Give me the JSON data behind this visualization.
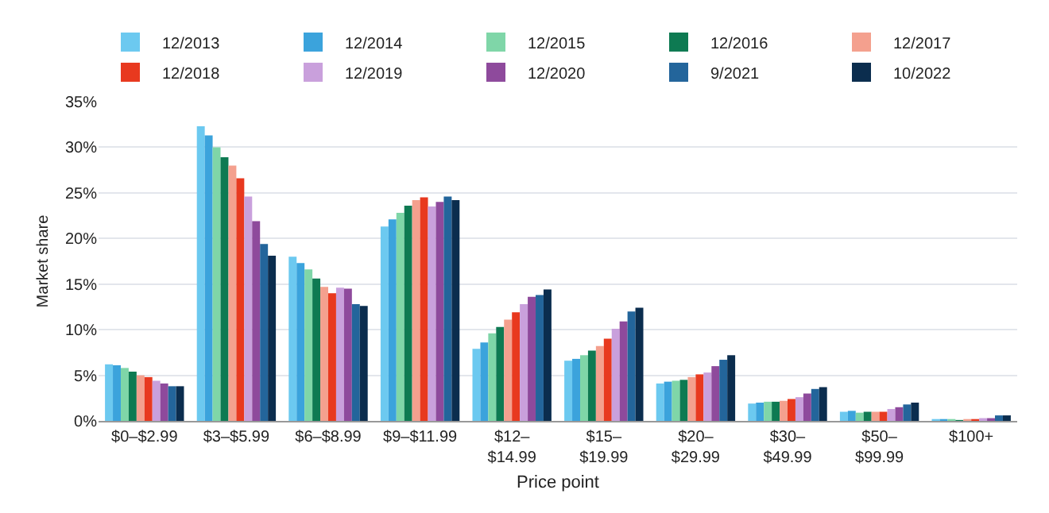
{
  "chart_data": {
    "type": "bar",
    "xlabel": "Price point",
    "ylabel": "Market share",
    "categories": [
      "$0–$2.99",
      "$3–$5.99",
      "$6–$8.99",
      "$9–$11.99",
      "$12–$14.99",
      "$15–$19.99",
      "$20–$29.99",
      "$30–$49.99",
      "$50–$99.99",
      "$100+"
    ],
    "series": [
      {
        "name": "12/2013",
        "color": "#6cc9f0",
        "values": [
          6.2,
          32.3,
          18.0,
          21.3,
          7.9,
          6.6,
          4.1,
          1.9,
          1.0,
          0.2
        ]
      },
      {
        "name": "12/2014",
        "color": "#3ba3dc",
        "values": [
          6.1,
          31.3,
          17.3,
          22.1,
          8.6,
          6.8,
          4.3,
          2.0,
          1.1,
          0.2
        ]
      },
      {
        "name": "12/2015",
        "color": "#7fd6a8",
        "values": [
          5.8,
          30.0,
          16.6,
          22.8,
          9.6,
          7.2,
          4.4,
          2.1,
          0.9,
          0.2
        ]
      },
      {
        "name": "12/2016",
        "color": "#0e7a52",
        "values": [
          5.4,
          28.9,
          15.6,
          23.6,
          10.3,
          7.7,
          4.5,
          2.1,
          1.0,
          0.1
        ]
      },
      {
        "name": "12/2017",
        "color": "#f4a08e",
        "values": [
          5.0,
          28.0,
          14.7,
          24.2,
          11.1,
          8.2,
          4.8,
          2.2,
          1.0,
          0.2
        ]
      },
      {
        "name": "12/2018",
        "color": "#e8391f",
        "values": [
          4.8,
          26.6,
          14.0,
          24.5,
          11.9,
          9.0,
          5.1,
          2.4,
          1.0,
          0.2
        ]
      },
      {
        "name": "12/2019",
        "color": "#c9a0dc",
        "values": [
          4.4,
          24.6,
          14.6,
          23.5,
          12.8,
          10.1,
          5.3,
          2.6,
          1.3,
          0.3
        ]
      },
      {
        "name": "12/2020",
        "color": "#8e4a9c",
        "values": [
          4.1,
          21.9,
          14.5,
          24.0,
          13.6,
          10.9,
          6.0,
          3.0,
          1.5,
          0.3
        ]
      },
      {
        "name": "9/2021",
        "color": "#23659b",
        "values": [
          3.8,
          19.4,
          12.8,
          24.6,
          13.8,
          12.0,
          6.7,
          3.5,
          1.8,
          0.6
        ]
      },
      {
        "name": "10/2022",
        "color": "#0b2d4e",
        "values": [
          3.8,
          18.1,
          12.6,
          24.2,
          14.4,
          12.4,
          7.2,
          3.7,
          2.0,
          0.6
        ]
      }
    ],
    "ylim": [
      0,
      35
    ],
    "yticks": [
      {
        "value": 0,
        "label": "0%"
      },
      {
        "value": 5,
        "label": "5%"
      },
      {
        "value": 10,
        "label": "10%"
      },
      {
        "value": 15,
        "label": "15%"
      },
      {
        "value": 20,
        "label": "20%"
      },
      {
        "value": 25,
        "label": "25%"
      },
      {
        "value": 30,
        "label": "30%"
      },
      {
        "value": 35,
        "label": "35%"
      }
    ],
    "grid": "y",
    "legend": "top"
  }
}
